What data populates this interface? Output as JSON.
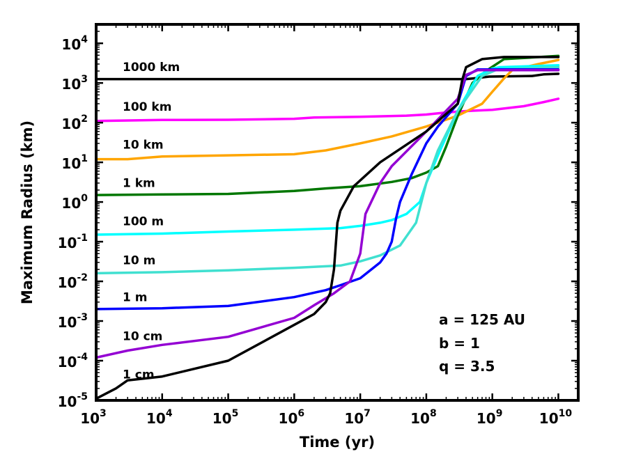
{
  "chart_data": {
    "type": "line",
    "title": "",
    "xlabel": "Time (yr)",
    "ylabel": "Maximum Radius (km)",
    "xscale": "log",
    "yscale": "log",
    "xlim": [
      1000,
      20000000000
    ],
    "ylim": [
      1e-05,
      30000
    ],
    "x_ticks": [
      {
        "base": "10",
        "exp": "3",
        "value": 1000
      },
      {
        "base": "10",
        "exp": "4",
        "value": 10000
      },
      {
        "base": "10",
        "exp": "5",
        "value": 100000
      },
      {
        "base": "10",
        "exp": "6",
        "value": 1000000
      },
      {
        "base": "10",
        "exp": "7",
        "value": 10000000
      },
      {
        "base": "10",
        "exp": "8",
        "value": 100000000
      },
      {
        "base": "10",
        "exp": "9",
        "value": 1000000000
      },
      {
        "base": "10",
        "exp": "10",
        "value": 10000000000
      }
    ],
    "y_ticks": [
      {
        "base": "10",
        "exp": "-5",
        "value": 1e-05
      },
      {
        "base": "10",
        "exp": "-4",
        "value": 0.0001
      },
      {
        "base": "10",
        "exp": "-3",
        "value": 0.001
      },
      {
        "base": "10",
        "exp": "-2",
        "value": 0.01
      },
      {
        "base": "10",
        "exp": "-1",
        "value": 0.1
      },
      {
        "base": "10",
        "exp": "0",
        "value": 1
      },
      {
        "base": "10",
        "exp": "1",
        "value": 10
      },
      {
        "base": "10",
        "exp": "2",
        "value": 100
      },
      {
        "base": "10",
        "exp": "3",
        "value": 1000
      },
      {
        "base": "10",
        "exp": "4",
        "value": 10000
      }
    ],
    "annotations": [
      "a = 125 AU",
      "b = 1",
      "q = 3.5"
    ],
    "series": [
      {
        "name": "1000 km",
        "label": "1000 km",
        "color": "#000000",
        "label_at": [
          1000,
          2000
        ],
        "points": [
          [
            1000,
            1250
          ],
          [
            400000000,
            1250
          ],
          [
            500000000,
            1300
          ],
          [
            900000000,
            1450
          ],
          [
            4000000000,
            1500
          ],
          [
            6000000000,
            1650
          ],
          [
            10000000000,
            1700
          ]
        ]
      },
      {
        "name": "100 km",
        "label": "100 km",
        "color": "#ff00ff",
        "label_at": [
          1000,
          200
        ],
        "points": [
          [
            1000,
            110
          ],
          [
            10000,
            117
          ],
          [
            100000,
            118
          ],
          [
            1000000,
            125
          ],
          [
            2000000,
            135
          ],
          [
            10000000,
            140
          ],
          [
            50000000,
            150
          ],
          [
            100000000,
            160
          ],
          [
            200000000,
            180
          ],
          [
            300000000,
            190
          ],
          [
            500000000,
            200
          ],
          [
            1000000000,
            210
          ],
          [
            3000000000,
            260
          ],
          [
            6000000000,
            330
          ],
          [
            10000000000,
            400
          ]
        ]
      },
      {
        "name": "10 km",
        "label": "10 km",
        "color": "#ffa500",
        "label_at": [
          1000,
          22
        ],
        "points": [
          [
            1000,
            12
          ],
          [
            3000,
            12
          ],
          [
            10000,
            14
          ],
          [
            100000,
            15
          ],
          [
            1000000,
            16
          ],
          [
            3000000,
            20
          ],
          [
            10000000,
            30
          ],
          [
            30000000,
            45
          ],
          [
            100000000,
            80
          ],
          [
            300000000,
            150
          ],
          [
            700000000,
            300
          ],
          [
            1000000000,
            600
          ],
          [
            1500000000,
            1300
          ],
          [
            2000000000,
            2100
          ],
          [
            5000000000,
            3000
          ],
          [
            10000000000,
            3800
          ]
        ]
      },
      {
        "name": "1 km",
        "label": "1 km",
        "color": "#007700",
        "label_at": [
          1000,
          2.4
        ],
        "points": [
          [
            1000,
            1.5
          ],
          [
            10000,
            1.55
          ],
          [
            100000,
            1.6
          ],
          [
            1000000,
            1.9
          ],
          [
            3000000,
            2.2
          ],
          [
            10000000,
            2.5
          ],
          [
            30000000,
            3.2
          ],
          [
            60000000,
            4
          ],
          [
            100000000,
            5.5
          ],
          [
            150000000,
            8
          ],
          [
            200000000,
            25
          ],
          [
            300000000,
            150
          ],
          [
            500000000,
            1000
          ],
          [
            800000000,
            2000
          ],
          [
            1500000000,
            4000
          ],
          [
            10000000000,
            4800
          ]
        ]
      },
      {
        "name": "100 m",
        "label": "100 m",
        "color": "#00ffff",
        "label_at": [
          1000,
          0.26
        ],
        "points": [
          [
            1000,
            0.15
          ],
          [
            10000,
            0.16
          ],
          [
            100000,
            0.18
          ],
          [
            1000000,
            0.2
          ],
          [
            5000000,
            0.22
          ],
          [
            10000000,
            0.25
          ],
          [
            20000000,
            0.3
          ],
          [
            30000000,
            0.35
          ],
          [
            50000000,
            0.5
          ],
          [
            80000000,
            1
          ],
          [
            100000000,
            3
          ],
          [
            150000000,
            15
          ],
          [
            300000000,
            200
          ],
          [
            600000000,
            1500
          ],
          [
            1000000000,
            2300
          ],
          [
            1300000000,
            2500
          ],
          [
            10000000000,
            2800
          ]
        ]
      },
      {
        "name": "10 m",
        "label": "10 m",
        "color": "#40e0d0",
        "label_at": [
          1000,
          0.027
        ],
        "points": [
          [
            1000,
            0.016
          ],
          [
            10000,
            0.017
          ],
          [
            100000,
            0.019
          ],
          [
            1000000,
            0.022
          ],
          [
            5000000,
            0.025
          ],
          [
            10000000,
            0.032
          ],
          [
            20000000,
            0.045
          ],
          [
            40000000,
            0.08
          ],
          [
            70000000,
            0.3
          ],
          [
            100000000,
            3
          ],
          [
            150000000,
            20
          ],
          [
            300000000,
            200
          ],
          [
            700000000,
            1500
          ],
          [
            1200000000,
            2200
          ],
          [
            10000000000,
            2500
          ]
        ]
      },
      {
        "name": "1 m",
        "label": "1 m",
        "color": "#0000ff",
        "label_at": [
          1000,
          0.0032
        ],
        "points": [
          [
            1000,
            0.002
          ],
          [
            10000,
            0.0021
          ],
          [
            100000,
            0.0024
          ],
          [
            1000000,
            0.004
          ],
          [
            3000000,
            0.006
          ],
          [
            5000000,
            0.008
          ],
          [
            10000000,
            0.012
          ],
          [
            20000000,
            0.03
          ],
          [
            25000000,
            0.05
          ],
          [
            30000000,
            0.1
          ],
          [
            35000000,
            0.4
          ],
          [
            40000000,
            1
          ],
          [
            60000000,
            5
          ],
          [
            100000000,
            30
          ],
          [
            150000000,
            80
          ],
          [
            300000000,
            300
          ],
          [
            400000000,
            1500
          ],
          [
            600000000,
            2200
          ],
          [
            10000000000,
            2200
          ]
        ]
      },
      {
        "name": "10 cm",
        "label": "10 cm",
        "color": "#9400d3",
        "label_at": [
          1000,
          0.00033
        ],
        "points": [
          [
            1000,
            0.00012
          ],
          [
            3000,
            0.00018
          ],
          [
            10000,
            0.00025
          ],
          [
            100000,
            0.0004
          ],
          [
            1000000,
            0.0012
          ],
          [
            2000000,
            0.0025
          ],
          [
            4000000,
            0.005
          ],
          [
            7000000,
            0.01
          ],
          [
            10000000,
            0.05
          ],
          [
            12000000,
            0.5
          ],
          [
            20000000,
            3
          ],
          [
            30000000,
            8
          ],
          [
            100000000,
            60
          ],
          [
            300000000,
            400
          ],
          [
            400000000,
            1600
          ],
          [
            600000000,
            2100
          ],
          [
            10000000000,
            2100
          ]
        ]
      },
      {
        "name": "1 cm",
        "label": "1 cm",
        "color": "#000000",
        "label_at": [
          1000,
          3.6e-05
        ],
        "points": [
          [
            1000,
            1.1e-05
          ],
          [
            2000,
            2e-05
          ],
          [
            3000,
            3.2e-05
          ],
          [
            10000,
            4e-05
          ],
          [
            100000,
            0.0001
          ],
          [
            1000000,
            0.0008
          ],
          [
            2000000,
            0.0015
          ],
          [
            3000000,
            0.003
          ],
          [
            3500000,
            0.005
          ],
          [
            4000000,
            0.02
          ],
          [
            4500000,
            0.3
          ],
          [
            5000000,
            0.6
          ],
          [
            8000000,
            2.5
          ],
          [
            20000000,
            10
          ],
          [
            100000000,
            60
          ],
          [
            300000000,
            300
          ],
          [
            350000000,
            1200
          ],
          [
            400000000,
            2500
          ],
          [
            700000000,
            4000
          ],
          [
            1500000000,
            4500
          ],
          [
            10000000000,
            4500
          ]
        ]
      }
    ]
  }
}
